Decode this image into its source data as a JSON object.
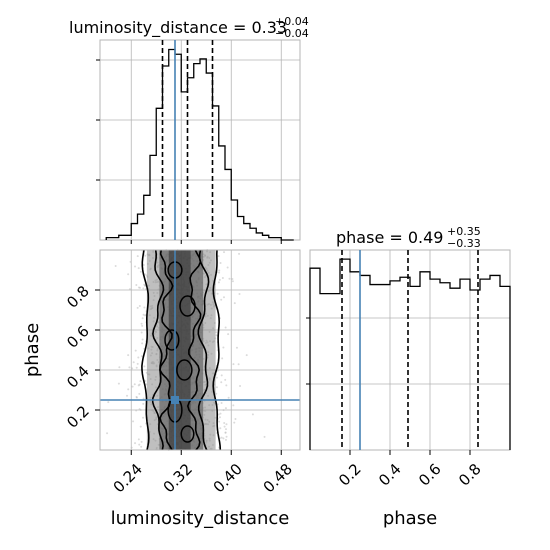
{
  "chart_data": [
    {
      "type": "histogram",
      "panel": "top-left",
      "title_main": "luminosity_distance = 0.33",
      "title_sup": "+0.04",
      "title_sub": "−0.04",
      "x_range": [
        0.19,
        0.51
      ],
      "x_ticks": [
        0.24,
        0.32,
        0.4,
        0.48
      ],
      "bin_edges": [
        0.2,
        0.21,
        0.22,
        0.23,
        0.24,
        0.25,
        0.26,
        0.27,
        0.28,
        0.29,
        0.3,
        0.31,
        0.32,
        0.33,
        0.34,
        0.35,
        0.36,
        0.37,
        0.38,
        0.39,
        0.4,
        0.41,
        0.42,
        0.43,
        0.44,
        0.45,
        0.46,
        0.47,
        0.48,
        0.49,
        0.5
      ],
      "counts": [
        2,
        2,
        4,
        4,
        14,
        22,
        38,
        72,
        112,
        148,
        162,
        158,
        126,
        138,
        150,
        154,
        142,
        114,
        80,
        60,
        34,
        20,
        14,
        10,
        6,
        4,
        2,
        2,
        0,
        0
      ],
      "quantile_lines": [
        0.29,
        0.33,
        0.37
      ],
      "truth": 0.31,
      "line_color": "#000000",
      "truth_color": "#4682b4",
      "grid": true
    },
    {
      "type": "histogram",
      "panel": "bottom-right",
      "title_main": "phase = 0.49",
      "title_sup": "+0.35",
      "title_sub": "−0.33",
      "x_range": [
        0.0,
        1.0
      ],
      "x_ticks": [
        0.2,
        0.4,
        0.6,
        0.8
      ],
      "bin_edges": [
        0.0,
        0.05,
        0.1,
        0.15,
        0.2,
        0.25,
        0.3,
        0.35,
        0.4,
        0.45,
        0.5,
        0.55,
        0.6,
        0.65,
        0.7,
        0.75,
        0.8,
        0.85,
        0.9,
        0.95,
        1.0
      ],
      "counts": [
        100,
        86,
        86,
        105,
        98,
        96,
        91,
        91,
        93,
        95,
        90,
        98,
        94,
        92,
        89,
        94,
        88,
        94,
        96,
        90
      ],
      "y_max": 110,
      "quantile_lines": [
        0.16,
        0.49,
        0.84
      ],
      "truth": 0.25,
      "line_color": "#000000",
      "truth_color": "#4682b4",
      "grid": true
    },
    {
      "type": "scatter",
      "panel": "bottom-left",
      "subtype": "2d-density-contour",
      "xlabel": "luminosity_distance",
      "ylabel": "phase",
      "x_range": [
        0.19,
        0.51
      ],
      "y_range": [
        0.0,
        1.0
      ],
      "x_ticks": [
        0.24,
        0.32,
        0.4,
        0.48
      ],
      "y_ticks": [
        0.2,
        0.4,
        0.6,
        0.8
      ],
      "x_center": 0.32,
      "x_sigma": 0.035,
      "truth": {
        "x": 0.31,
        "y": 0.25
      },
      "truth_color": "#4682b4",
      "point_color": "#bdbdbd",
      "grid": true
    }
  ]
}
